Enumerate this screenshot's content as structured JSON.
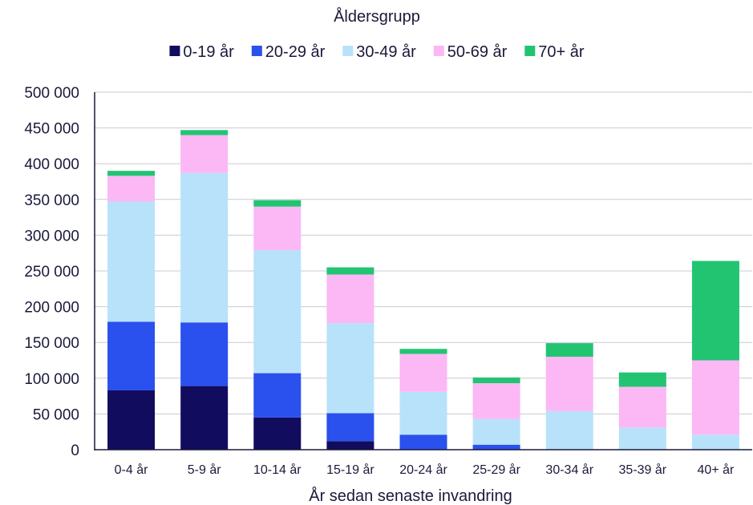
{
  "chart_data": {
    "type": "bar",
    "stacked": true,
    "legend_title": "Åldersgrupp",
    "legend_position": "top",
    "xlabel": "År sedan senaste invandring",
    "ylabel": "",
    "ylim": [
      0,
      500000
    ],
    "yticks": [
      0,
      50000,
      100000,
      150000,
      200000,
      250000,
      300000,
      350000,
      400000,
      450000,
      500000
    ],
    "ytick_labels": [
      "0",
      "50 000",
      "100 000",
      "150 000",
      "200 000",
      "250 000",
      "300 000",
      "350 000",
      "400 000",
      "450 000",
      "500 000"
    ],
    "grid": true,
    "categories": [
      "0-4 år",
      "5-9 år",
      "10-14 år",
      "15-19 år",
      "20-24 år",
      "25-29 år",
      "30-34 år",
      "35-39 år",
      "40+ år"
    ],
    "series": [
      {
        "name": "0-19 år",
        "color": "#120c5e",
        "values": [
          83000,
          89000,
          45000,
          12000,
          0,
          0,
          0,
          0,
          0
        ]
      },
      {
        "name": "20-29 år",
        "color": "#2a50ee",
        "values": [
          96000,
          89000,
          62000,
          39000,
          21000,
          7000,
          0,
          0,
          0
        ]
      },
      {
        "name": "30-49 år",
        "color": "#b8e2fa",
        "values": [
          168000,
          209000,
          172000,
          126000,
          60000,
          36000,
          54000,
          31000,
          21000
        ]
      },
      {
        "name": "50-69 år",
        "color": "#fbb8f5",
        "values": [
          36000,
          53000,
          61000,
          68000,
          53000,
          50000,
          76000,
          57000,
          104000
        ]
      },
      {
        "name": "70+ år",
        "color": "#22c472",
        "values": [
          7000,
          7000,
          9000,
          10000,
          7000,
          8000,
          19000,
          20000,
          139000
        ]
      }
    ]
  }
}
